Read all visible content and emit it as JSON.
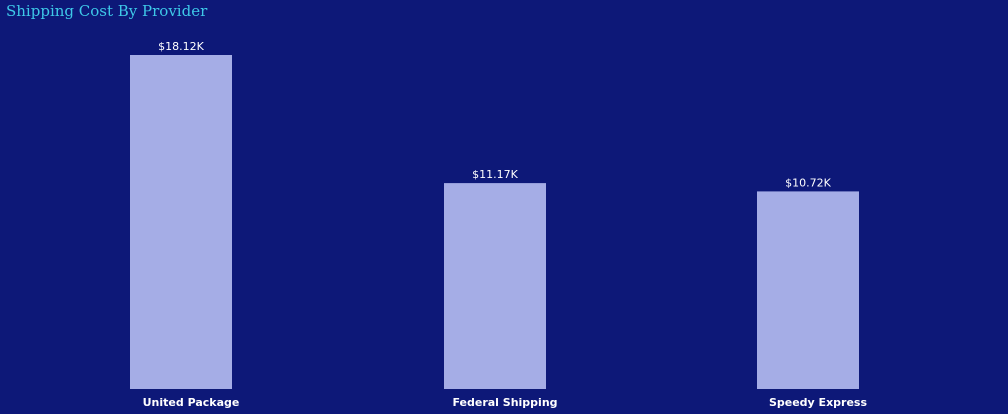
{
  "chart_data": {
    "type": "bar",
    "title": "Shipping Cost By Provider",
    "xlabel": "",
    "ylabel": "",
    "categories": [
      "United Package",
      "Federal Shipping",
      "Speedy Express"
    ],
    "values": [
      18.12,
      11.17,
      10.72
    ],
    "value_labels": [
      "$18.12K",
      "$11.17K",
      "$10.72K"
    ],
    "ylim": [
      0,
      18.5
    ],
    "grid": false,
    "legend": "none"
  },
  "colors": {
    "background": "#0d1878",
    "bar": "#a5ade6",
    "title": "#3ec8e8",
    "labels": "#ffffff"
  }
}
